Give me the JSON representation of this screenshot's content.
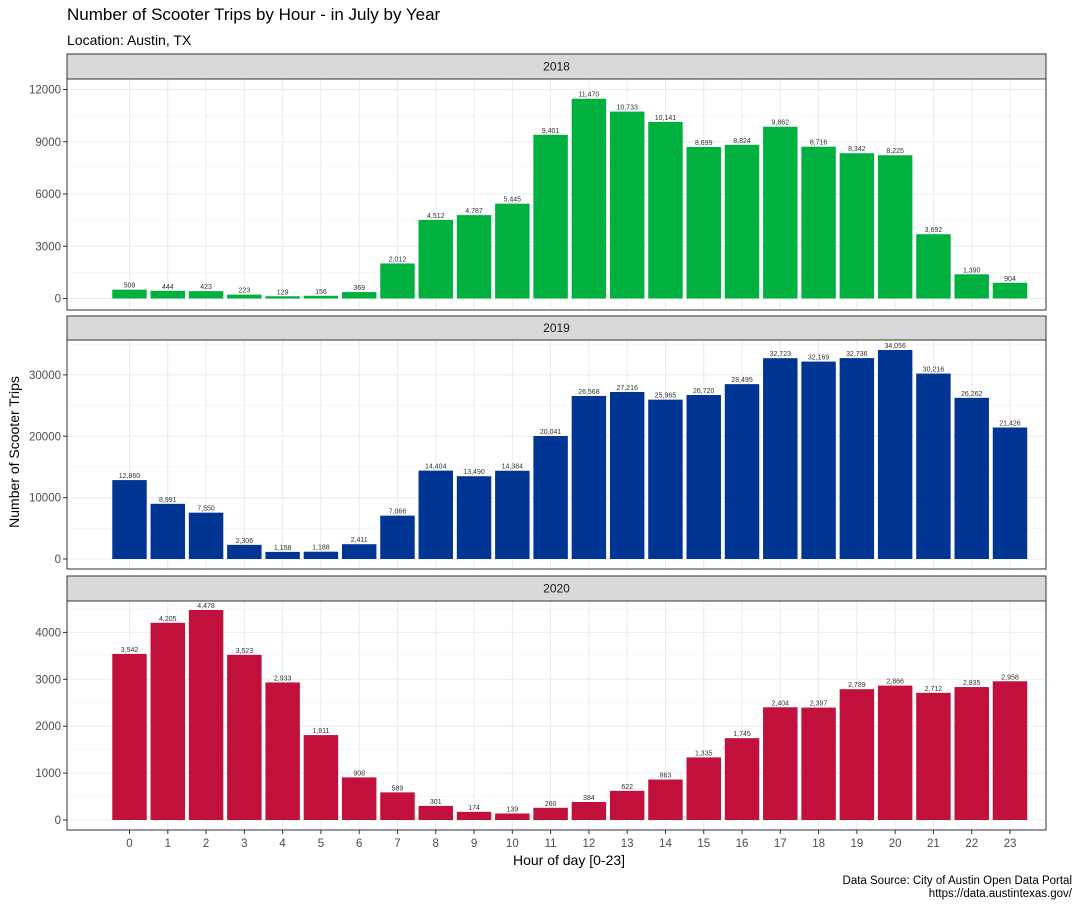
{
  "title": "Number of Scooter Trips by Hour - in July by Year",
  "subtitle": "Location: Austin, TX",
  "caption_line1": "Data Source: City of Austin Open Data Portal",
  "caption_line2": "https://data.austintexas.gov/",
  "chart_data": {
    "type": "bar",
    "xlabel": "Hour of day [0-23]",
    "ylabel": "Number of Scooter Trips",
    "categories": [
      "0",
      "1",
      "2",
      "3",
      "4",
      "5",
      "6",
      "7",
      "8",
      "9",
      "10",
      "11",
      "12",
      "13",
      "14",
      "15",
      "16",
      "17",
      "18",
      "19",
      "20",
      "21",
      "22",
      "23"
    ],
    "grid": true,
    "facets": [
      {
        "name": "2018",
        "color": "#00B140",
        "ylim": [
          0,
          12000
        ],
        "yticks": [
          0,
          3000,
          6000,
          9000,
          12000
        ],
        "values": [
          508,
          444,
          423,
          223,
          129,
          156,
          369,
          2012,
          4512,
          4787,
          5445,
          9401,
          11470,
          10733,
          10141,
          8699,
          8824,
          9862,
          8716,
          8342,
          8225,
          3692,
          1390,
          904
        ]
      },
      {
        "name": "2019",
        "color": "#003594",
        "ylim": [
          0,
          34056
        ],
        "yticks": [
          0,
          10000,
          20000,
          30000
        ],
        "values": [
          12860,
          8991,
          7550,
          2306,
          1158,
          1188,
          2411,
          7066,
          14404,
          13490,
          14384,
          20041,
          26568,
          27216,
          25965,
          26720,
          28495,
          32723,
          32169,
          32736,
          34056,
          30216,
          26262,
          21426
        ]
      },
      {
        "name": "2020",
        "color": "#C0103B",
        "ylim": [
          0,
          4478
        ],
        "yticks": [
          0,
          1000,
          2000,
          3000,
          4000
        ],
        "values": [
          3542,
          4205,
          4478,
          3523,
          2933,
          1811,
          908,
          589,
          301,
          174,
          139,
          260,
          384,
          622,
          863,
          1335,
          1745,
          2404,
          2397,
          2789,
          2866,
          2712,
          2835,
          2958
        ]
      }
    ]
  }
}
